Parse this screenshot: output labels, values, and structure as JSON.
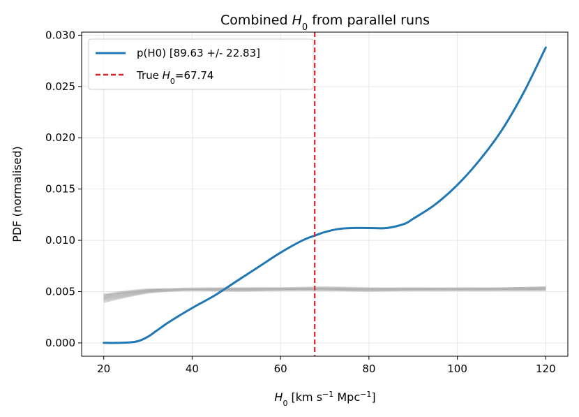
{
  "chart_data": {
    "type": "line",
    "title": {
      "pre": "Combined ",
      "sym": "H",
      "sub": "0",
      "post": " from parallel runs"
    },
    "xlabel": {
      "sym": "H",
      "sub": "0",
      "text": " [km s",
      "sup1": "−1",
      "text2": " Mpc",
      "sup2": "−1",
      "text3": "]"
    },
    "ylabel": "PDF (normalised)",
    "xlim": [
      15,
      125
    ],
    "ylim": [
      -0.0013,
      0.0303
    ],
    "xticks": [
      20,
      40,
      60,
      80,
      100,
      120
    ],
    "xtick_labels": [
      "20",
      "40",
      "60",
      "80",
      "100",
      "120"
    ],
    "yticks": [
      0.0,
      0.005,
      0.01,
      0.015,
      0.02,
      0.025,
      0.03
    ],
    "ytick_labels": [
      "0.000",
      "0.005",
      "0.010",
      "0.015",
      "0.020",
      "0.025",
      "0.030"
    ],
    "grid": true,
    "legend_position": "top-left",
    "series": [
      {
        "name": "p(H0) [89.63 +/- 22.83]",
        "color": "#1f77b4",
        "style": "solid",
        "x": [
          20,
          23,
          26,
          28,
          30,
          32,
          35,
          40,
          45,
          50,
          55,
          60,
          65,
          68,
          70,
          73,
          76,
          80,
          84,
          88,
          90,
          95,
          100,
          105,
          110,
          115,
          120
        ],
        "y": [
          0.0,
          0.0,
          5e-05,
          0.0002,
          0.0006,
          0.0012,
          0.0021,
          0.0034,
          0.0046,
          0.006,
          0.0074,
          0.0088,
          0.01,
          0.0105,
          0.0108,
          0.0111,
          0.0112,
          0.0112,
          0.0112,
          0.0116,
          0.0121,
          0.0135,
          0.0154,
          0.0178,
          0.0207,
          0.0244,
          0.0288
        ]
      },
      {
        "name": "True H0=67.74",
        "color": "#d62728",
        "style": "dashed",
        "vline": 67.74
      }
    ],
    "background_runs": {
      "color": "#b0b0b0",
      "x": [
        20,
        25,
        30,
        35,
        40,
        50,
        60,
        70,
        80,
        90,
        100,
        110,
        120
      ],
      "runs": [
        [
          0.0044,
          0.0048,
          0.0051,
          0.0052,
          0.0052,
          0.0052,
          0.0052,
          0.0052,
          0.0052,
          0.0052,
          0.0052,
          0.0052,
          0.0053
        ],
        [
          0.0042,
          0.0046,
          0.005,
          0.0051,
          0.0052,
          0.0052,
          0.0052,
          0.0053,
          0.0052,
          0.0052,
          0.0052,
          0.0052,
          0.0052
        ],
        [
          0.0046,
          0.0049,
          0.0051,
          0.0052,
          0.0053,
          0.0053,
          0.0053,
          0.0053,
          0.0053,
          0.0053,
          0.0053,
          0.0053,
          0.0054
        ],
        [
          0.004,
          0.0045,
          0.0049,
          0.0051,
          0.0052,
          0.0052,
          0.0053,
          0.0054,
          0.0053,
          0.0052,
          0.0052,
          0.0053,
          0.0053
        ],
        [
          0.0045,
          0.0049,
          0.0051,
          0.0052,
          0.0052,
          0.0051,
          0.0052,
          0.0052,
          0.0052,
          0.0053,
          0.0052,
          0.0052,
          0.0052
        ],
        [
          0.0043,
          0.0047,
          0.005,
          0.0052,
          0.0052,
          0.0052,
          0.0052,
          0.0052,
          0.0051,
          0.0052,
          0.0053,
          0.0053,
          0.0054
        ],
        [
          0.0047,
          0.005,
          0.0052,
          0.0052,
          0.0052,
          0.0053,
          0.0053,
          0.0052,
          0.0052,
          0.0052,
          0.0052,
          0.0052,
          0.0052
        ]
      ]
    },
    "legend": [
      {
        "label": "p(H0) [89.63 +/- 22.83]",
        "color": "#1f77b4",
        "style": "solid"
      },
      {
        "label_pre": "True ",
        "label_sym": "H",
        "label_sub": "0",
        "label_post": "=67.74",
        "color": "#d62728",
        "style": "dashed"
      }
    ]
  }
}
